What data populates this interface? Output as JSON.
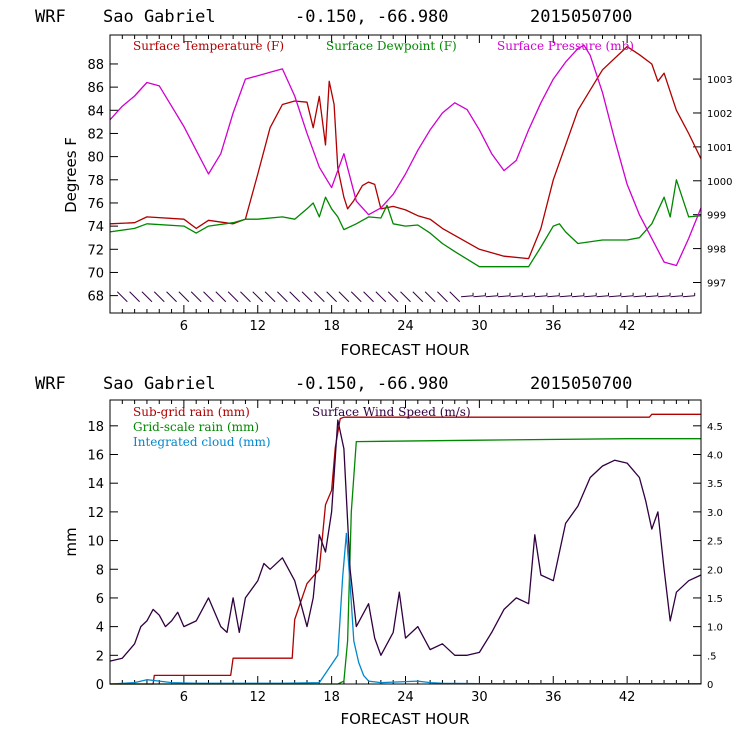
{
  "chart_data": [
    {
      "type": "line",
      "header": {
        "model": "WRF",
        "location": "Sao Gabriel",
        "coords": "-0.150, -66.980",
        "run": "2015050700"
      },
      "xlabel": "FORECAST HOUR",
      "ylabel": "Degrees F",
      "xlim": [
        0,
        48
      ],
      "ylim": [
        66.5,
        90.5
      ],
      "y2lim": [
        996.1,
        1004.3
      ],
      "x_ticks": [
        6,
        12,
        18,
        24,
        30,
        36,
        42
      ],
      "y_ticks": [
        68,
        70,
        72,
        74,
        76,
        78,
        80,
        82,
        84,
        86,
        88
      ],
      "y2_ticks": [
        997,
        998,
        999,
        1000,
        1001,
        1002,
        1003
      ],
      "series": [
        {
          "name": "Surface Temperature (F)",
          "color": "#b00000",
          "axis": "left",
          "x": [
            0,
            2,
            3,
            6,
            7,
            8,
            10,
            11,
            12,
            13,
            14,
            15,
            16,
            16.5,
            17,
            17.5,
            17.8,
            18.2,
            18.5,
            19,
            19.3,
            19.8,
            20.5,
            21,
            21.5,
            22,
            23,
            24,
            25,
            26,
            27,
            28,
            30,
            32,
            34,
            35,
            36,
            38,
            40,
            42,
            43,
            44,
            44.5,
            45,
            46,
            47,
            48
          ],
          "y": [
            74.2,
            74.3,
            74.8,
            74.6,
            73.8,
            74.5,
            74.2,
            74.6,
            78.5,
            82.5,
            84.5,
            84.8,
            84.7,
            82.5,
            85.2,
            81.0,
            86.5,
            84.5,
            79.0,
            76.5,
            75.5,
            76.2,
            77.5,
            77.8,
            77.6,
            75.5,
            75.7,
            75.4,
            74.9,
            74.6,
            73.8,
            73.2,
            72.0,
            71.4,
            71.2,
            73.8,
            78.0,
            84.0,
            87.5,
            89.5,
            88.8,
            88.0,
            86.5,
            87.2,
            84.0,
            82.0,
            79.8
          ]
        },
        {
          "name": "Surface Dewpoint (F)",
          "color": "#008800",
          "axis": "left",
          "x": [
            0,
            2,
            3,
            6,
            7,
            8,
            10,
            11,
            12,
            14,
            15,
            16,
            16.5,
            17,
            17.5,
            18,
            18.5,
            19,
            20,
            21,
            22,
            22.5,
            23,
            24,
            25,
            26,
            27,
            28,
            30,
            32,
            34,
            35,
            36,
            36.5,
            37,
            38,
            40,
            42,
            43,
            44,
            45,
            45.5,
            46,
            47,
            48
          ],
          "y": [
            73.5,
            73.8,
            74.2,
            74.0,
            73.4,
            74.0,
            74.3,
            74.6,
            74.6,
            74.8,
            74.6,
            75.5,
            76.0,
            74.8,
            76.5,
            75.5,
            74.8,
            73.7,
            74.2,
            74.8,
            74.7,
            75.8,
            74.2,
            74.0,
            74.1,
            73.4,
            72.5,
            71.8,
            70.5,
            70.5,
            70.5,
            72.2,
            74.0,
            74.2,
            73.5,
            72.5,
            72.8,
            72.8,
            73.0,
            74.2,
            76.5,
            74.8,
            78.0,
            74.8,
            74.9
          ]
        },
        {
          "name": "Surface Pressure (mb)",
          "color": "#d000d0",
          "axis": "right",
          "x": [
            0,
            1,
            2,
            3,
            4,
            5,
            6,
            7,
            8,
            9,
            10,
            11,
            12,
            13,
            14,
            15,
            16,
            17,
            18,
            19,
            20,
            21,
            22,
            23,
            24,
            25,
            26,
            27,
            28,
            29,
            30,
            31,
            32,
            33,
            34,
            35,
            36,
            37,
            38,
            38.5,
            39,
            40,
            41,
            42,
            43,
            44,
            45,
            46,
            47,
            48
          ],
          "y": [
            1001.8,
            1002.2,
            1002.5,
            1002.9,
            1002.8,
            1002.2,
            1001.6,
            1000.9,
            1000.2,
            1000.8,
            1002.0,
            1003.0,
            1003.1,
            1003.2,
            1003.3,
            1002.5,
            1001.4,
            1000.4,
            999.8,
            1000.8,
            999.4,
            999.0,
            999.2,
            999.6,
            1000.2,
            1000.9,
            1001.5,
            1002.0,
            1002.3,
            1002.1,
            1001.5,
            1000.8,
            1000.3,
            1000.6,
            1001.5,
            1002.3,
            1003.0,
            1003.5,
            1003.9,
            1004.0,
            1003.7,
            1002.6,
            1001.2,
            999.9,
            999.0,
            998.3,
            997.6,
            997.5,
            998.3,
            999.2
          ]
        }
      ],
      "wind_barbs_x": [
        1,
        2,
        3,
        4,
        5,
        6,
        7,
        8,
        9,
        10,
        11,
        12,
        13,
        14,
        15,
        16,
        17,
        18,
        19,
        20,
        21,
        22,
        23,
        24,
        25,
        26,
        27,
        28,
        29,
        30,
        31,
        32,
        33,
        34,
        35,
        36,
        37,
        38,
        39,
        40,
        41,
        42,
        43,
        44,
        45,
        46,
        47
      ]
    },
    {
      "type": "line",
      "header": {
        "model": "WRF",
        "location": "Sao Gabriel",
        "coords": "-0.150, -66.980",
        "run": "2015050700"
      },
      "xlabel": "FORECAST HOUR",
      "ylabel": "mm",
      "xlim": [
        0,
        48
      ],
      "ylim": [
        0,
        19.8
      ],
      "y2lim": [
        0,
        4.95
      ],
      "x_ticks": [
        6,
        12,
        18,
        24,
        30,
        36,
        42
      ],
      "y_ticks": [
        0,
        2,
        4,
        6,
        8,
        10,
        12,
        14,
        16,
        18
      ],
      "y2_ticks": [
        0,
        0.5,
        1.0,
        1.5,
        2.0,
        2.5,
        3.0,
        3.5,
        4.0,
        4.5
      ],
      "y2_tick_labels": [
        "0",
        ".5",
        "1.0",
        "1.5",
        "2.0",
        "2.5",
        "3.0",
        "3.5",
        "4.0",
        "4.5"
      ],
      "series": [
        {
          "name": "Sub-grid rain (mm)",
          "color": "#b00000",
          "axis": "left",
          "x": [
            0,
            3.5,
            3.6,
            9.8,
            10,
            14.8,
            15,
            16,
            17,
            17.5,
            18,
            18.3,
            18.7,
            19,
            19.3,
            43.8,
            44,
            48
          ],
          "y": [
            0,
            0,
            0.6,
            0.6,
            1.8,
            1.8,
            4.5,
            7.0,
            8.0,
            12.5,
            13.5,
            16.5,
            18.5,
            18.6,
            18.6,
            18.6,
            18.8,
            18.8
          ]
        },
        {
          "name": "Grid-scale rain (mm)",
          "color": "#008800",
          "axis": "left",
          "x": [
            0,
            18.5,
            19.0,
            19.3,
            19.6,
            20,
            30,
            42,
            48
          ],
          "y": [
            0,
            0,
            0.2,
            3.0,
            12.0,
            16.9,
            17.0,
            17.1,
            17.1
          ]
        },
        {
          "name": "Integrated cloud (mm)",
          "color": "#0088cc",
          "axis": "left",
          "x": [
            0,
            2,
            3,
            4,
            5,
            7,
            10,
            14,
            17,
            18.5,
            18.9,
            19.2,
            19.5,
            19.8,
            20.2,
            20.6,
            21,
            22,
            25,
            26,
            27,
            30,
            48
          ],
          "y": [
            0,
            0.1,
            0.3,
            0.2,
            0.1,
            0.05,
            0.05,
            0.05,
            0.1,
            2.0,
            7.5,
            10.5,
            7.0,
            3.0,
            1.5,
            0.6,
            0.2,
            0.1,
            0.2,
            0.1,
            0.05,
            0.02,
            0.02
          ]
        },
        {
          "name": "Surface Wind Speed (m/s)",
          "color": "#300040",
          "axis": "right",
          "x": [
            0,
            1,
            2,
            2.5,
            3,
            3.5,
            4,
            4.5,
            5,
            5.5,
            6,
            7,
            8,
            9,
            9.5,
            10,
            10.5,
            11,
            12,
            12.5,
            13,
            14,
            15,
            16,
            16.5,
            17,
            17.5,
            18,
            18.5,
            19,
            19.5,
            20,
            21,
            21.5,
            22,
            23,
            23.5,
            24,
            25,
            26,
            27,
            28,
            29,
            30,
            31,
            32,
            33,
            34,
            34.5,
            35,
            36,
            37,
            38,
            39,
            40,
            41,
            42,
            43,
            43.5,
            44,
            44.5,
            45,
            45.5,
            46,
            47,
            48
          ],
          "y": [
            0.4,
            0.45,
            0.7,
            1.0,
            1.1,
            1.3,
            1.2,
            1.0,
            1.1,
            1.25,
            1.0,
            1.1,
            1.5,
            1.0,
            0.9,
            1.5,
            0.9,
            1.5,
            1.8,
            2.1,
            2.0,
            2.2,
            1.8,
            1.0,
            1.5,
            2.6,
            2.3,
            3.0,
            4.6,
            4.1,
            2.0,
            1.0,
            1.4,
            0.8,
            0.5,
            0.9,
            1.6,
            0.8,
            1.0,
            0.6,
            0.7,
            0.5,
            0.5,
            0.55,
            0.9,
            1.3,
            1.5,
            1.4,
            2.6,
            1.9,
            1.8,
            2.8,
            3.1,
            3.6,
            3.8,
            3.9,
            3.85,
            3.6,
            3.2,
            2.7,
            3.0,
            2.0,
            1.1,
            1.6,
            1.8,
            1.9
          ]
        }
      ]
    }
  ]
}
